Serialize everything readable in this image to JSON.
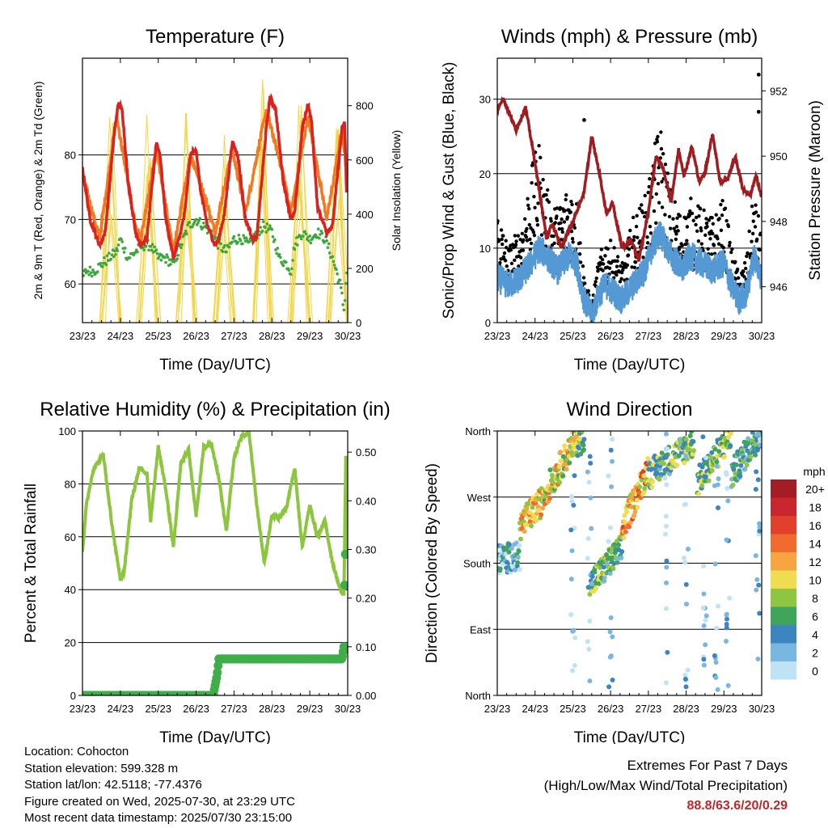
{
  "charts": {
    "temperature": {
      "title": "Temperature (F)",
      "xlabel": "Time (Day/UTC)",
      "ylabel": "2m & 9m T (Red, Orange) & 2m Td (Green)",
      "ylabel_right": "Solar Insolation (Yellow)"
    },
    "winds": {
      "title": "Winds (mph) & Pressure (mb)",
      "xlabel": "Time (Day/UTC)",
      "ylabel": "Sonic/Prop Wind & Gust (Blue, Black)",
      "ylabel_right": "Station Pressure (Maroon)"
    },
    "humidity": {
      "title": "Relative Humidity (%) & Precipitation (in)",
      "xlabel": "Time (Day/UTC)",
      "ylabel": "Percent & Total Rainfall"
    },
    "direction": {
      "title": "Wind Direction",
      "xlabel": "Time (Day/UTC)",
      "ylabel": "Direction (Colored By Speed)",
      "legend_title": "mph"
    }
  },
  "chart_data": [
    {
      "type": "line",
      "title": "Temperature (F)",
      "xlabel": "Time (Day/UTC)",
      "ylabel": "2m & 9m T (Red, Orange) & 2m Td (Green)",
      "ylabel_right": "Solar Insolation (Yellow)",
      "x_ticks": [
        "23/23",
        "24/23",
        "25/23",
        "26/23",
        "27/23",
        "28/23",
        "29/23",
        "30/23"
      ],
      "xlim": [
        0,
        7
      ],
      "ylim": [
        54,
        95
      ],
      "y_ticks": [
        60,
        70,
        80
      ],
      "ylim_right": [
        0,
        975
      ],
      "y_ticks_right": [
        0,
        200,
        400,
        600,
        800
      ],
      "grid": true,
      "series": [
        {
          "name": "2m T",
          "color": "#d8231f",
          "axis": "left",
          "x": [
            0,
            0.2,
            0.45,
            0.6,
            0.85,
            0.95,
            1.05,
            1.2,
            1.4,
            1.55,
            1.7,
            1.95,
            2.05,
            2.2,
            2.4,
            2.55,
            2.7,
            2.85,
            3.0,
            3.1,
            3.3,
            3.5,
            3.6,
            3.75,
            3.95,
            4.1,
            4.3,
            4.5,
            4.6,
            4.85,
            4.95,
            5.1,
            5.3,
            5.5,
            5.6,
            5.8,
            5.95,
            6.05,
            6.2,
            6.45,
            6.6,
            6.85,
            6.92,
            6.97,
            7.0
          ],
          "y": [
            78,
            70,
            66,
            68,
            84,
            88,
            87,
            76,
            68,
            66,
            67,
            82,
            80,
            70,
            64,
            67,
            71,
            80,
            81,
            75,
            69,
            66,
            67,
            71,
            82,
            80,
            70,
            67,
            67,
            84,
            89,
            87,
            76,
            70,
            71,
            84,
            88,
            85,
            72,
            68,
            69,
            84,
            85,
            74,
            78
          ]
        },
        {
          "name": "9m T",
          "color": "#f07a1f",
          "axis": "left",
          "x": [
            0,
            0.45,
            0.9,
            1.4,
            1.55,
            1.95,
            2.4,
            2.85,
            3.1,
            3.5,
            3.95,
            4.3,
            4.85,
            5.3,
            5.5,
            5.95,
            6.45,
            6.85,
            7.0
          ],
          "y": [
            77,
            67,
            86,
            69,
            67,
            81,
            65,
            80,
            76,
            68,
            81,
            71,
            87,
            77,
            71,
            86,
            70,
            84,
            76
          ]
        },
        {
          "name": "2m Td",
          "color": "#3aa83a",
          "axis": "left",
          "x": [
            0,
            0.1,
            0.3,
            0.5,
            0.7,
            0.9,
            1.0,
            1.2,
            1.4,
            1.6,
            1.8,
            2.0,
            2.2,
            2.4,
            2.6,
            2.8,
            3.0,
            3.2,
            3.4,
            3.6,
            3.8,
            4.0,
            4.2,
            4.4,
            4.6,
            4.8,
            5.0,
            5.2,
            5.4,
            5.5,
            5.6,
            5.8,
            6.0,
            6.2,
            6.4,
            6.6,
            6.8,
            6.9,
            7.0
          ],
          "y": [
            61,
            62,
            62,
            63,
            64,
            65,
            67,
            64,
            65,
            66,
            66,
            64,
            64,
            63,
            66,
            69,
            70,
            69,
            68,
            66,
            65,
            67,
            67,
            66,
            68,
            69,
            68,
            64,
            63,
            62,
            66,
            68,
            67,
            68,
            67,
            64,
            60,
            56,
            64
          ]
        },
        {
          "name": "Solar Insolation",
          "color": "#f5d547",
          "axis": "right",
          "peak_days": [
            0.75,
            1.75,
            2.75,
            3.75,
            4.75,
            5.75,
            6.75
          ],
          "peaks": [
            820,
            930,
            960,
            860,
            900,
            880,
            900
          ]
        }
      ]
    },
    {
      "type": "line",
      "title": "Winds (mph) & Pressure (mb)",
      "xlabel": "Time (Day/UTC)",
      "ylabel": "Sonic/Prop Wind & Gust (Blue, Black)",
      "ylabel_right": "Station Pressure (Maroon)",
      "x_ticks": [
        "23/23",
        "24/23",
        "25/23",
        "26/23",
        "27/23",
        "28/23",
        "29/23",
        "30/23"
      ],
      "xlim": [
        0,
        7
      ],
      "ylim": [
        0,
        35.5
      ],
      "y_ticks": [
        0,
        10,
        20,
        30
      ],
      "ylim_right": [
        944.9,
        953
      ],
      "y_ticks_right": [
        946,
        948,
        950,
        952
      ],
      "grid": true,
      "series": [
        {
          "name": "Sonic/Prop Wind",
          "color": "#5599d4",
          "axis": "left",
          "x": [
            0,
            0.3,
            0.6,
            0.9,
            1.1,
            1.3,
            1.6,
            1.9,
            2.1,
            2.3,
            2.5,
            2.7,
            2.9,
            3.1,
            3.3,
            3.6,
            3.9,
            4.1,
            4.3,
            4.6,
            4.9,
            5.1,
            5.4,
            5.7,
            6.0,
            6.2,
            6.4,
            6.6,
            6.8,
            7.0
          ],
          "y": [
            6,
            5,
            6,
            8,
            10,
            9,
            7,
            9,
            8,
            3,
            1,
            4,
            5,
            4,
            3,
            5,
            7,
            10,
            12,
            9,
            7,
            9,
            8,
            7,
            8,
            5,
            3,
            4,
            9,
            6
          ]
        },
        {
          "name": "Gust",
          "color": "#000000",
          "axis": "left",
          "x": [
            0,
            0.3,
            0.6,
            0.9,
            1.1,
            1.3,
            1.6,
            1.9,
            2.1,
            2.3,
            2.5,
            2.7,
            2.9,
            3.1,
            3.3,
            3.6,
            3.9,
            4.1,
            4.3,
            4.6,
            4.9,
            5.1,
            5.4,
            5.7,
            6.0,
            6.2,
            6.4,
            6.6,
            6.8,
            7.0
          ],
          "y": [
            12,
            8,
            10,
            16,
            19,
            14,
            12,
            15,
            13,
            5,
            2,
            7,
            9,
            8,
            6,
            11,
            13,
            17,
            21,
            14,
            11,
            13,
            12,
            11,
            13,
            8,
            5,
            7,
            14,
            9
          ]
        },
        {
          "name": "Station Pressure",
          "color": "#a01c20",
          "axis": "right",
          "x": [
            0,
            0.15,
            0.35,
            0.5,
            0.75,
            1.0,
            1.3,
            1.45,
            1.7,
            2.0,
            2.3,
            2.5,
            2.7,
            2.9,
            3.05,
            3.3,
            3.55,
            3.75,
            4.0,
            4.2,
            4.4,
            4.6,
            4.8,
            4.95,
            5.15,
            5.35,
            5.5,
            5.7,
            5.9,
            6.1,
            6.3,
            6.5,
            6.7,
            6.85,
            7.0
          ],
          "y": [
            951.4,
            951.8,
            951.2,
            950.8,
            951.5,
            949.8,
            947.5,
            947.9,
            947.2,
            948.0,
            948.9,
            950.6,
            949.5,
            948.2,
            948.6,
            947.2,
            947.4,
            946.8,
            948.3,
            950.0,
            949.6,
            948.6,
            950.2,
            949.4,
            950.3,
            949.2,
            949.5,
            950.7,
            949.2,
            949.3,
            950.0,
            949.0,
            948.8,
            949.4,
            948.7
          ]
        }
      ],
      "outliers_gust": [
        {
          "x": 6.92,
          "y": 33.3
        },
        {
          "x": 6.92,
          "y": 28.3
        },
        {
          "x": 2.3,
          "y": 27.2
        }
      ]
    },
    {
      "type": "line",
      "title": "Relative Humidity (%) & Precipitation (in)",
      "xlabel": "Time (Day/UTC)",
      "ylabel": "Percent & Total Rainfall",
      "x_ticks": [
        "23/23",
        "24/23",
        "25/23",
        "26/23",
        "27/23",
        "28/23",
        "29/23",
        "30/23"
      ],
      "xlim": [
        0,
        7
      ],
      "ylim": [
        0,
        100
      ],
      "y_ticks": [
        0,
        20,
        40,
        60,
        80,
        100
      ],
      "ylim_right": [
        0,
        0.5435
      ],
      "y_ticks_right": [
        0.0,
        0.1,
        0.2,
        0.3,
        0.4,
        0.5
      ],
      "grid": true,
      "series": [
        {
          "name": "Relative Humidity",
          "color": "#8cc63f",
          "axis": "left",
          "x": [
            0,
            0.1,
            0.3,
            0.55,
            0.8,
            1.0,
            1.1,
            1.3,
            1.5,
            1.7,
            1.8,
            2.0,
            2.2,
            2.4,
            2.6,
            2.8,
            3.0,
            3.2,
            3.4,
            3.6,
            3.8,
            4.0,
            4.2,
            4.4,
            4.6,
            4.8,
            5.0,
            5.2,
            5.4,
            5.6,
            5.8,
            6.0,
            6.2,
            6.4,
            6.6,
            6.8,
            6.9,
            6.95,
            7.0
          ],
          "y": [
            54,
            72,
            86,
            91,
            62,
            44,
            47,
            74,
            86,
            84,
            66,
            94,
            78,
            56,
            88,
            93,
            68,
            94,
            95,
            82,
            62,
            90,
            98,
            99,
            72,
            50,
            68,
            67,
            72,
            86,
            56,
            72,
            60,
            66,
            50,
            40,
            38,
            90,
            54
          ]
        },
        {
          "name": "Total Precipitation",
          "color": "#3fae49",
          "axis": "right",
          "x": [
            0,
            3.45,
            3.55,
            3.6,
            6.85,
            6.9,
            6.93,
            7.0
          ],
          "y": [
            0.0,
            0.0,
            0.04,
            0.075,
            0.075,
            0.1,
            0.29,
            0.29
          ]
        }
      ]
    },
    {
      "type": "scatter",
      "title": "Wind Direction",
      "xlabel": "Time (Day/UTC)",
      "ylabel": "Direction (Colored By Speed)",
      "x_ticks": [
        "23/23",
        "24/23",
        "25/23",
        "26/23",
        "27/23",
        "28/23",
        "29/23",
        "30/23"
      ],
      "xlim": [
        0,
        7
      ],
      "ylim": [
        0,
        360
      ],
      "y_ticks": [
        "North",
        "East",
        "South",
        "West",
        "North"
      ],
      "y_tick_values": [
        0,
        90,
        180,
        270,
        360
      ],
      "grid": true,
      "colorbar": {
        "title": "mph",
        "labels": [
          "20+",
          "18",
          "16",
          "14",
          "12",
          "10",
          "8",
          "6",
          "4",
          "2",
          "0"
        ],
        "colors": [
          "#a51d24",
          "#c8272e",
          "#e2402c",
          "#f06b2d",
          "#f7a541",
          "#f0dc4f",
          "#8fc641",
          "#3fa55a",
          "#3d85c0",
          "#7ab6e2",
          "#bfe2f5"
        ]
      },
      "trend_segments": [
        {
          "x": [
            0.0,
            0.6
          ],
          "dir": [
            185,
            190
          ],
          "speed": 4
        },
        {
          "x": [
            0.6,
            1.2
          ],
          "dir": [
            230,
            265
          ],
          "speed": 12
        },
        {
          "x": [
            1.2,
            2.1
          ],
          "dir": [
            270,
            350
          ],
          "speed": 11
        },
        {
          "x": [
            2.1,
            2.3
          ],
          "dir": [
            340,
            355
          ],
          "speed": 8
        },
        {
          "x": [
            2.45,
            3.3
          ],
          "dir": [
            150,
            200
          ],
          "speed": 7
        },
        {
          "x": [
            3.3,
            4.0
          ],
          "dir": [
            225,
            310
          ],
          "speed": 13
        },
        {
          "x": [
            4.0,
            5.2
          ],
          "dir": [
            300,
            345
          ],
          "speed": 7
        },
        {
          "x": [
            5.3,
            6.2
          ],
          "dir": [
            290,
            355
          ],
          "speed": 8
        },
        {
          "x": [
            6.2,
            7.0
          ],
          "dir": [
            300,
            360
          ],
          "speed": 6
        }
      ]
    }
  ],
  "info": {
    "location": "Location: Cohocton",
    "elevation": "Station elevation: 599.328 m",
    "latlon": "Station lat/lon: 42.5118; -77.4376",
    "created": "Figure created on Wed, 2025-07-30, at 23:29 UTC",
    "recent": "Most recent data timestamp: 2025/07/30 23:15:00"
  },
  "extremes": {
    "line1": "Extremes For Past 7 Days",
    "line2": "(High/Low/Max Wind/Total Precipitation)",
    "values": "88.8/63.6/20/0.29"
  }
}
